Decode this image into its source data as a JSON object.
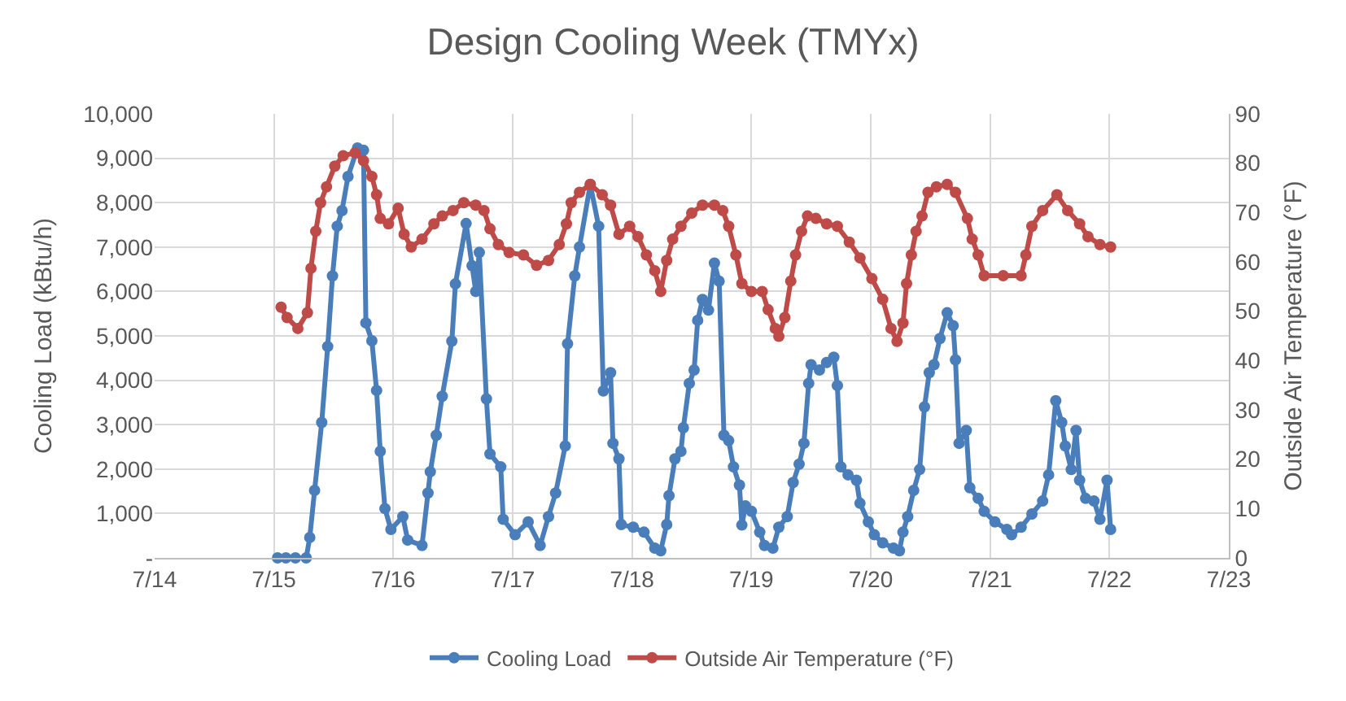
{
  "chart_data": {
    "type": "line",
    "title": "Design Cooling Week (TMYx)",
    "ylabel": "Cooling Load (kBtu/h)",
    "y2label": "Outside Air Temperature (°F)",
    "xlim": [
      "--07-14",
      "--07-23"
    ],
    "xticks": [
      {
        "value": "--07-14",
        "label": "7/14"
      },
      {
        "value": "--07-15",
        "label": "7/15"
      },
      {
        "value": "--07-16",
        "label": "7/16"
      },
      {
        "value": "--07-17",
        "label": "7/17"
      },
      {
        "value": "--07-18",
        "label": "7/18"
      },
      {
        "value": "--07-19",
        "label": "7/19"
      },
      {
        "value": "--07-20",
        "label": "7/20"
      },
      {
        "value": "--07-21",
        "label": "7/21"
      },
      {
        "value": "--07-22",
        "label": "7/22"
      },
      {
        "value": "--07-23",
        "label": "7/23"
      }
    ],
    "ylim": [
      0,
      10000
    ],
    "yticks": [
      {
        "value": 0,
        "label": "-"
      },
      {
        "value": 1000,
        "label": "1,000"
      },
      {
        "value": 2000,
        "label": "2,000"
      },
      {
        "value": 3000,
        "label": "3,000"
      },
      {
        "value": 4000,
        "label": "4,000"
      },
      {
        "value": 5000,
        "label": "5,000"
      },
      {
        "value": 6000,
        "label": "6,000"
      },
      {
        "value": 7000,
        "label": "7,000"
      },
      {
        "value": 8000,
        "label": "8,000"
      },
      {
        "value": 9000,
        "label": "9,000"
      },
      {
        "value": 10000,
        "label": "10,000"
      }
    ],
    "y2lim": [
      0,
      90
    ],
    "y2ticks": [
      0,
      10,
      20,
      30,
      40,
      50,
      60,
      70,
      80,
      90
    ],
    "grid": true,
    "legend": "bottom",
    "marker": "circle",
    "line_style": "solid",
    "series": [
      {
        "name": "Cooling Load",
        "color": "#4a7ebb",
        "axis": "y",
        "x": [
          "--07-15T00:43",
          "--07-15T02:24",
          "--07-15T04:19",
          "--07-15T06:29",
          "--07-15T07:12",
          "--07-15T08:10",
          "--07-15T09:36",
          "--07-15T10:48",
          "--07-15T11:46",
          "--07-15T12:43",
          "--07-15T13:41",
          "--07-15T14:53",
          "--07-15T16:48",
          "--07-15T18:00",
          "--07-15T18:29",
          "--07-15T19:41",
          "--07-15T20:38",
          "--07-15T21:22",
          "--07-15T22:19",
          "--07-15T23:31",
          "--07-16T01:55",
          "--07-16T02:53",
          "--07-16T05:46",
          "--07-16T06:58",
          "--07-16T07:26",
          "--07-16T08:38",
          "--07-16T09:50",
          "--07-16T11:46",
          "--07-16T12:29",
          "--07-16T14:38",
          "--07-16T15:50",
          "--07-16T16:34",
          "--07-16T17:17",
          "--07-16T18:43",
          "--07-16T19:26",
          "--07-16T21:36",
          "--07-16T22:05",
          "--07-17T00:29",
          "--07-17T03:07",
          "--07-17T05:31",
          "--07-17T07:12",
          "--07-17T08:38",
          "--07-17T10:34",
          "--07-17T11:02",
          "--07-17T12:29",
          "--07-17T13:26",
          "--07-17T15:36",
          "--07-17T17:17",
          "--07-17T18:14",
          "--07-17T19:41",
          "--07-17T20:10",
          "--07-17T21:22",
          "--07-17T21:50",
          "--07-18T00:14",
          "--07-18T02:24",
          "--07-18T04:34",
          "--07-18T05:46",
          "--07-18T06:58",
          "--07-18T07:26",
          "--07-18T08:38",
          "--07-18T09:50",
          "--07-18T10:19",
          "--07-18T11:31",
          "--07-18T12:29",
          "--07-18T13:12",
          "--07-18T14:10",
          "--07-18T15:22",
          "--07-18T16:34",
          "--07-18T17:31",
          "--07-18T18:29",
          "--07-18T19:26",
          "--07-18T20:24",
          "--07-18T21:36",
          "--07-18T22:05",
          "--07-18T22:48",
          "--07-19T00:00",
          "--07-19T01:41",
          "--07-19T02:38",
          "--07-19T04:19",
          "--07-19T05:31",
          "--07-19T07:12",
          "--07-19T08:24",
          "--07-19T09:36",
          "--07-19T10:34",
          "--07-19T11:31",
          "--07-19T12:00",
          "--07-19T13:41",
          "--07-19T15:07",
          "--07-19T16:34",
          "--07-19T17:17",
          "--07-19T18:00",
          "--07-19T19:26",
          "--07-19T21:07",
          "--07-19T21:50",
          "--07-19T23:31",
          "--07-20T00:43",
          "--07-20T02:24",
          "--07-20T04:34",
          "--07-20T05:46",
          "--07-20T06:29",
          "--07-20T07:26",
          "--07-20T08:38",
          "--07-20T09:50",
          "--07-20T10:48",
          "--07-20T11:46",
          "--07-20T12:43",
          "--07-20T13:55",
          "--07-20T15:22",
          "--07-20T16:34",
          "--07-20T17:02",
          "--07-20T17:46",
          "--07-20T19:12",
          "--07-20T19:55",
          "--07-20T21:36",
          "--07-20T22:48",
          "--07-21T00:58",
          "--07-21T03:22",
          "--07-21T04:19",
          "--07-21T06:14",
          "--07-21T08:24",
          "--07-21T10:34",
          "--07-21T11:46",
          "--07-21T13:12",
          "--07-21T14:24",
          "--07-21T15:07",
          "--07-21T16:19",
          "--07-21T17:17",
          "--07-21T18:00",
          "--07-21T19:12",
          "--07-21T20:53",
          "--07-21T22:05",
          "--07-21T23:31",
          "--07-22T00:14"
        ],
        "values": [
          0,
          0,
          0,
          0,
          460,
          1520,
          3050,
          4760,
          6350,
          7470,
          7820,
          8590,
          9230,
          9180,
          5290,
          4890,
          3770,
          2400,
          1110,
          640,
          930,
          400,
          280,
          1460,
          1940,
          2760,
          3640,
          4880,
          6170,
          7530,
          6580,
          6000,
          6880,
          3580,
          2340,
          2050,
          870,
          520,
          810,
          280,
          930,
          1460,
          2520,
          4820,
          6350,
          7000,
          8410,
          7470,
          3760,
          4170,
          2580,
          2230,
          750,
          690,
          580,
          220,
          160,
          750,
          1400,
          2230,
          2400,
          2930,
          3930,
          4230,
          5350,
          5820,
          5580,
          6640,
          6230,
          2760,
          2640,
          2050,
          1640,
          740,
          1170,
          1050,
          580,
          280,
          220,
          690,
          930,
          1700,
          2110,
          2580,
          3930,
          4350,
          4230,
          4400,
          4520,
          3880,
          2050,
          1870,
          1750,
          1230,
          810,
          520,
          340,
          220,
          160,
          580,
          930,
          1520,
          1990,
          3400,
          4170,
          4350,
          4940,
          5520,
          5230,
          4460,
          2580,
          2870,
          1580,
          1340,
          1050,
          810,
          640,
          520,
          690,
          990,
          1280,
          1870,
          3540,
          3050,
          2520,
          1990,
          2870,
          1750,
          1340,
          1280,
          870,
          1750,
          640
        ]
      },
      {
        "name": "Outside Air Temperature (°F)",
        "color": "#be4b48",
        "axis": "y2",
        "x": [
          "--07-15T01:26",
          "--07-15T02:38",
          "--07-15T04:48",
          "--07-15T06:43",
          "--07-15T07:26",
          "--07-15T08:24",
          "--07-15T09:22",
          "--07-15T10:34",
          "--07-15T12:14",
          "--07-15T13:55",
          "--07-15T16:19",
          "--07-15T18:00",
          "--07-15T19:41",
          "--07-15T20:38",
          "--07-15T21:22",
          "--07-15T23:02",
          "--07-16T00:58",
          "--07-16T02:10",
          "--07-16T03:36",
          "--07-16T05:46",
          "--07-16T08:10",
          "--07-16T09:50",
          "--07-16T12:00",
          "--07-16T14:10",
          "--07-16T16:34",
          "--07-16T18:14",
          "--07-16T19:26",
          "--07-16T21:07",
          "--07-16T23:17",
          "--07-17T02:10",
          "--07-17T04:48",
          "--07-17T07:12",
          "--07-17T09:22",
          "--07-17T10:48",
          "--07-17T11:46",
          "--07-17T13:26",
          "--07-17T15:36",
          "--07-17T18:00",
          "--07-17T19:41",
          "--07-17T21:22",
          "--07-17T23:31",
          "--07-18T01:12",
          "--07-18T02:53",
          "--07-18T04:34",
          "--07-18T05:46",
          "--07-18T06:58",
          "--07-18T08:10",
          "--07-18T09:50",
          "--07-18T12:00",
          "--07-18T14:10",
          "--07-18T16:34",
          "--07-18T18:14",
          "--07-18T19:26",
          "--07-18T20:53",
          "--07-18T22:05",
          "--07-19T00:00",
          "--07-19T02:10",
          "--07-19T03:22",
          "--07-19T04:48",
          "--07-19T05:31",
          "--07-19T06:43",
          "--07-19T07:55",
          "--07-19T08:53",
          "--07-19T10:05",
          "--07-19T11:17",
          "--07-19T12:58",
          "--07-19T15:07",
          "--07-19T17:17",
          "--07-19T19:41",
          "--07-19T21:50",
          "--07-20T00:14",
          "--07-20T02:24",
          "--07-20T04:05",
          "--07-20T05:17",
          "--07-20T06:29",
          "--07-20T07:12",
          "--07-20T08:10",
          "--07-20T09:07",
          "--07-20T10:19",
          "--07-20T11:31",
          "--07-20T13:12",
          "--07-20T15:22",
          "--07-20T17:02",
          "--07-20T19:26",
          "--07-20T20:24",
          "--07-20T21:36",
          "--07-20T22:48",
          "--07-21T02:38",
          "--07-21T06:14",
          "--07-21T07:12",
          "--07-21T08:24",
          "--07-21T10:34",
          "--07-21T13:26",
          "--07-21T15:36",
          "--07-21T18:00",
          "--07-21T19:41",
          "--07-21T22:05",
          "--07-22T00:14"
        ],
        "values": [
          50.8,
          48.7,
          46.5,
          49.7,
          58.7,
          66.2,
          72.0,
          75.2,
          79.4,
          81.5,
          82.1,
          80.5,
          77.3,
          73.6,
          68.8,
          67.7,
          70.9,
          65.6,
          63.0,
          64.6,
          67.7,
          69.3,
          70.4,
          72.0,
          71.5,
          70.4,
          66.7,
          63.5,
          61.9,
          61.4,
          59.3,
          60.3,
          63.5,
          67.7,
          72.0,
          74.1,
          75.7,
          73.6,
          71.5,
          65.6,
          67.2,
          65.1,
          61.4,
          58.2,
          54.0,
          60.3,
          64.6,
          67.2,
          69.9,
          71.5,
          71.5,
          70.4,
          67.2,
          61.4,
          55.6,
          54.0,
          54.0,
          50.3,
          46.5,
          44.9,
          48.7,
          56.1,
          61.4,
          66.2,
          69.3,
          68.8,
          67.7,
          67.2,
          64.0,
          60.8,
          56.6,
          52.4,
          46.5,
          43.9,
          47.6,
          55.6,
          61.4,
          66.2,
          69.3,
          74.1,
          75.2,
          75.7,
          74.1,
          68.8,
          64.6,
          61.4,
          57.2,
          57.2,
          57.2,
          61.4,
          67.2,
          70.4,
          73.6,
          70.4,
          67.7,
          65.1,
          63.5,
          63.0
        ]
      }
    ]
  }
}
